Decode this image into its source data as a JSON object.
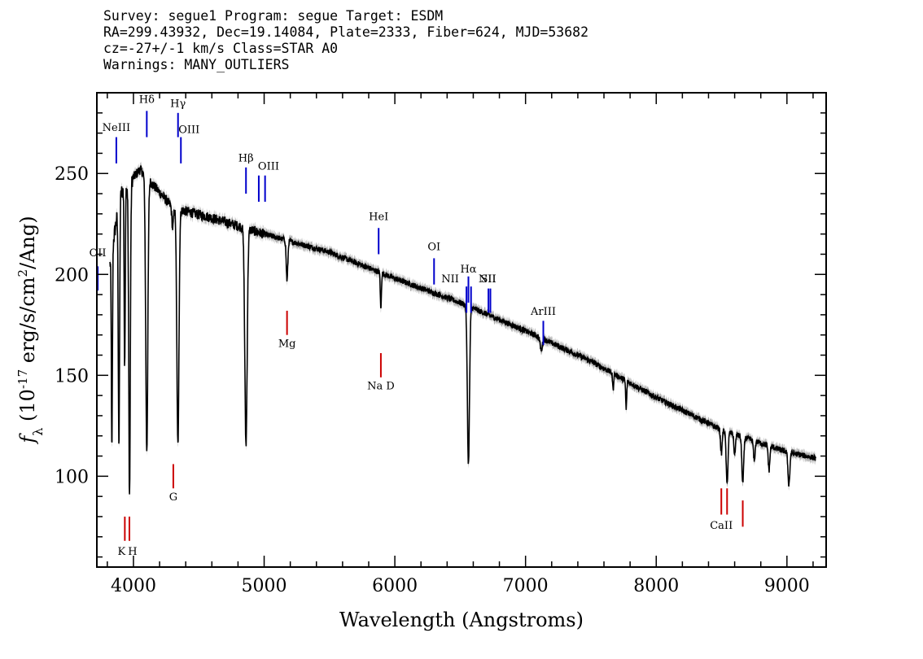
{
  "header": {
    "line1": "Survey: segue1 Program: segue Target: ESDM",
    "line2": "RA=299.43932, Dec=19.14084, Plate=2333, Fiber=624, MJD=53682",
    "line3": "cz=-27+/-1 km/s Class=STAR A0",
    "line4": "Warnings: MANY_OUTLIERS"
  },
  "chart_data": {
    "type": "line",
    "title": "",
    "xlabel": "Wavelength (Angstroms)",
    "ylabel": "f_λ (10^-17 erg/s/cm^2/Ang)",
    "xlim": [
      3720,
      9300
    ],
    "ylim": [
      55,
      290
    ],
    "xticks": [
      4000,
      5000,
      6000,
      7000,
      8000,
      9000
    ],
    "yticks": [
      100,
      150,
      200,
      250
    ],
    "grid": false,
    "colors": {
      "spectrum": "#000000",
      "error_band": "#b0b0b0",
      "emission": "#0000cc",
      "absorption": "#cc0000"
    },
    "continuum": {
      "x": [
        3820,
        3900,
        4050,
        4300,
        4600,
        5000,
        5500,
        6000,
        6500,
        7000,
        7500,
        8000,
        8500,
        9000,
        9220
      ],
      "y": [
        205,
        240,
        252,
        233,
        228,
        220,
        211,
        198,
        186,
        172,
        157,
        139,
        123,
        112,
        109
      ]
    },
    "absorption_features": [
      {
        "x": 3835,
        "depth": 100,
        "width": 4
      },
      {
        "x": 3889,
        "depth": 120,
        "width": 5
      },
      {
        "x": 3933,
        "depth": 90,
        "width": 4
      },
      {
        "x": 3970,
        "depth": 155,
        "width": 6
      },
      {
        "x": 4102,
        "depth": 135,
        "width": 8
      },
      {
        "x": 4300,
        "depth": 10,
        "width": 6
      },
      {
        "x": 4340,
        "depth": 117,
        "width": 8
      },
      {
        "x": 4861,
        "depth": 107,
        "width": 9
      },
      {
        "x": 5175,
        "depth": 20,
        "width": 6
      },
      {
        "x": 5893,
        "depth": 18,
        "width": 4
      },
      {
        "x": 6563,
        "depth": 78,
        "width": 8
      },
      {
        "x": 7120,
        "depth": 6,
        "width": 8
      },
      {
        "x": 7670,
        "depth": 8,
        "width": 4
      },
      {
        "x": 7770,
        "depth": 14,
        "width": 4
      },
      {
        "x": 8498,
        "depth": 12,
        "width": 6
      },
      {
        "x": 8542,
        "depth": 26,
        "width": 7
      },
      {
        "x": 8600,
        "depth": 10,
        "width": 6
      },
      {
        "x": 8662,
        "depth": 23,
        "width": 7
      },
      {
        "x": 8750,
        "depth": 10,
        "width": 6
      },
      {
        "x": 8863,
        "depth": 12,
        "width": 6
      },
      {
        "x": 9015,
        "depth": 16,
        "width": 7
      },
      {
        "x": 9230,
        "depth": 4,
        "width": 6
      }
    ],
    "emission_lines": [
      {
        "label": "OII",
        "x": 3727,
        "y1": 192,
        "y2": 204,
        "text_y": 209,
        "label_dx": 0
      },
      {
        "label": "NeIII",
        "x": 3869,
        "y1": 255,
        "y2": 268,
        "text_y": 271,
        "label_dx": 0
      },
      {
        "label": "Hδ",
        "x": 4102,
        "y1": 268,
        "y2": 281,
        "text_y": 285,
        "label_dx": 0
      },
      {
        "label": "Hγ",
        "x": 4341,
        "y1": 268,
        "y2": 280,
        "text_y": 283,
        "label_dx": 0
      },
      {
        "label": "OIII",
        "x": 4363,
        "y1": 255,
        "y2": 268,
        "text_y": 270,
        "label_dx": 10
      },
      {
        "label": "Hβ",
        "x": 4861,
        "y1": 240,
        "y2": 253,
        "text_y": 256,
        "label_dx": 0
      },
      {
        "label": "OIII",
        "x": 4959,
        "y1": 236,
        "y2": 249,
        "text_y": 252,
        "label_dx": 12
      },
      {
        "label": "OIII",
        "x": 5007,
        "y1": 236,
        "y2": 249,
        "text_y": 0,
        "label_dx": 0
      },
      {
        "label": "HeI",
        "x": 5876,
        "y1": 210,
        "y2": 223,
        "text_y": 227,
        "label_dx": 0
      },
      {
        "label": "OI",
        "x": 6300,
        "y1": 195,
        "y2": 208,
        "text_y": 212,
        "label_dx": 0
      },
      {
        "label": "NII",
        "x": 6548,
        "y1": 181,
        "y2": 194,
        "text_y": 196,
        "label_dx": -20
      },
      {
        "label": "Hα",
        "x": 6563,
        "y1": 186,
        "y2": 199,
        "text_y": 201,
        "label_dx": 0
      },
      {
        "label": "NII",
        "x": 6583,
        "y1": 181,
        "y2": 194,
        "text_y": 196,
        "label_dx": 20
      },
      {
        "label": "SII",
        "x": 6716,
        "y1": 181,
        "y2": 193,
        "text_y": 196,
        "label_dx": 0
      },
      {
        "label": "SII",
        "x": 6731,
        "y1": 181,
        "y2": 193,
        "text_y": 0,
        "label_dx": 0
      },
      {
        "label": "ArIII",
        "x": 7136,
        "y1": 165,
        "y2": 177,
        "text_y": 180,
        "label_dx": 0
      }
    ],
    "absorption_lines": [
      {
        "label": "Mg",
        "x": 5175,
        "y1": 170,
        "y2": 182,
        "text_y": 164,
        "label_dx": 0
      },
      {
        "label": "Na D",
        "x": 5893,
        "y1": 149,
        "y2": 161,
        "text_y": 143,
        "label_dx": 0
      },
      {
        "label": "G",
        "x": 4305,
        "y1": 94,
        "y2": 106,
        "text_y": 88,
        "label_dx": 0
      },
      {
        "label": "K",
        "x": 3934,
        "y1": 68,
        "y2": 80,
        "text_y": 61,
        "label_dx": -4
      },
      {
        "label": "H",
        "x": 3969,
        "y1": 68,
        "y2": 80,
        "text_y": 61,
        "label_dx": 4
      },
      {
        "label": "CaII",
        "x": 8498,
        "y1": 81,
        "y2": 94,
        "text_y": 74,
        "label_dx": 0
      },
      {
        "label": "CaII",
        "x": 8542,
        "y1": 81,
        "y2": 94,
        "text_y": 0,
        "label_dx": 0
      },
      {
        "label": "CaII",
        "x": 8662,
        "y1": 75,
        "y2": 88,
        "text_y": 0,
        "label_dx": 0
      }
    ]
  }
}
